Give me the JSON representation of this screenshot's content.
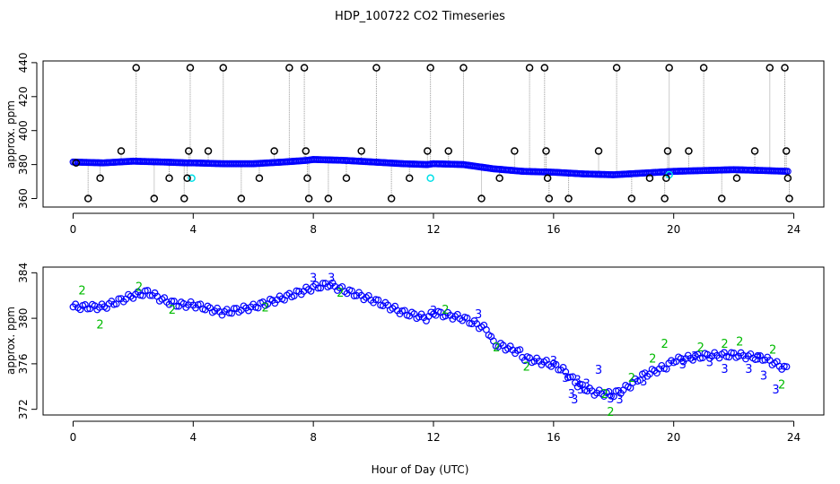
{
  "figure": {
    "title": "HDP_100722  CO2 Timeseries",
    "xlabel": "Hour of Day (UTC)"
  },
  "colors": {
    "raw_black": "#000000",
    "raw_blue": "#0000ff",
    "raw_cyan": "#00e0e8",
    "raw_green": "#00bb00",
    "drop_line": "#999999",
    "axes": "#000000"
  },
  "chart_data": [
    {
      "type": "scatter",
      "title": "",
      "xlabel": "",
      "ylabel": "approx. ppm",
      "xlim": [
        -1,
        25
      ],
      "ylim": [
        355,
        441
      ],
      "x_ticks": [
        "0",
        "4",
        "8",
        "12",
        "16",
        "20",
        "24"
      ],
      "y_ticks": [
        "360",
        "380",
        "400",
        "420",
        "440"
      ],
      "grid": false,
      "series": [
        {
          "marker": "blue-open-circle",
          "knots": [
            [
              0.0,
              381.5
            ],
            [
              1.0,
              381.0
            ],
            [
              2.0,
              382.0
            ],
            [
              3.0,
              381.5
            ],
            [
              3.8,
              381.0
            ],
            [
              4.0,
              381.0
            ],
            [
              5.0,
              380.5
            ],
            [
              6.0,
              380.5
            ],
            [
              7.0,
              381.5
            ],
            [
              7.8,
              382.5
            ],
            [
              8.0,
              383.0
            ],
            [
              9.0,
              382.5
            ],
            [
              10.0,
              381.5
            ],
            [
              11.0,
              380.5
            ],
            [
              11.8,
              380.0
            ],
            [
              12.0,
              380.5
            ],
            [
              13.0,
              380.0
            ],
            [
              14.0,
              377.5
            ],
            [
              15.0,
              376.0
            ],
            [
              16.0,
              375.5
            ],
            [
              17.0,
              374.5
            ],
            [
              18.0,
              374.0
            ],
            [
              19.0,
              375.0
            ],
            [
              20.0,
              376.0
            ],
            [
              21.0,
              376.5
            ],
            [
              22.0,
              377.0
            ],
            [
              23.0,
              376.5
            ],
            [
              23.8,
              376.0
            ]
          ],
          "spacing_hours": 0.05
        },
        {
          "marker": "black-open-circle",
          "points": [
            [
              0.1,
              381
            ],
            [
              0.5,
              360
            ],
            [
              0.9,
              372
            ],
            [
              1.6,
              388
            ],
            [
              2.1,
              437
            ],
            [
              2.7,
              360
            ],
            [
              3.2,
              372
            ],
            [
              3.7,
              360
            ],
            [
              3.8,
              372
            ],
            [
              3.85,
              388
            ],
            [
              3.9,
              437
            ],
            [
              4.5,
              388
            ],
            [
              5.0,
              437
            ],
            [
              5.6,
              360
            ],
            [
              6.2,
              372
            ],
            [
              6.7,
              388
            ],
            [
              7.2,
              437
            ],
            [
              7.7,
              437
            ],
            [
              7.75,
              388
            ],
            [
              7.8,
              372
            ],
            [
              7.85,
              360
            ],
            [
              8.5,
              360
            ],
            [
              9.1,
              372
            ],
            [
              9.6,
              388
            ],
            [
              10.1,
              437
            ],
            [
              10.6,
              360
            ],
            [
              11.2,
              372
            ],
            [
              11.8,
              388
            ],
            [
              11.9,
              437
            ],
            [
              12.5,
              388
            ],
            [
              13.0,
              437
            ],
            [
              13.6,
              360
            ],
            [
              14.2,
              372
            ],
            [
              14.7,
              388
            ],
            [
              15.2,
              437
            ],
            [
              15.7,
              437
            ],
            [
              15.75,
              388
            ],
            [
              15.8,
              372
            ],
            [
              15.85,
              360
            ],
            [
              16.5,
              360
            ],
            [
              17.5,
              388
            ],
            [
              18.1,
              437
            ],
            [
              18.6,
              360
            ],
            [
              19.2,
              372
            ],
            [
              19.7,
              360
            ],
            [
              19.75,
              372
            ],
            [
              19.8,
              388
            ],
            [
              19.85,
              437
            ],
            [
              20.5,
              388
            ],
            [
              21.0,
              437
            ],
            [
              21.6,
              360
            ],
            [
              22.1,
              372
            ],
            [
              22.7,
              388
            ],
            [
              23.2,
              437
            ],
            [
              23.7,
              437
            ],
            [
              23.75,
              388
            ],
            [
              23.8,
              372
            ],
            [
              23.85,
              360
            ]
          ]
        },
        {
          "marker": "cyan-open-circle",
          "points": [
            [
              3.95,
              372
            ],
            [
              11.9,
              372
            ],
            [
              19.85,
              374
            ]
          ]
        }
      ]
    },
    {
      "type": "scatter",
      "title": "",
      "xlabel": "Hour of Day (UTC)",
      "ylabel": "approx. ppm",
      "xlim": [
        -1,
        25
      ],
      "ylim": [
        371.5,
        384.5
      ],
      "x_ticks": [
        "0",
        "4",
        "8",
        "12",
        "16",
        "20",
        "24"
      ],
      "y_ticks": [
        "372",
        "376",
        "380",
        "384"
      ],
      "grid": false,
      "series": [
        {
          "marker": "blue-open-circle",
          "knots": [
            [
              0.0,
              381.0
            ],
            [
              1.0,
              381.0
            ],
            [
              2.0,
              382.0
            ],
            [
              2.5,
              382.3
            ],
            [
              3.0,
              381.6
            ],
            [
              3.5,
              381.2
            ],
            [
              4.0,
              381.2
            ],
            [
              5.0,
              380.5
            ],
            [
              6.0,
              381.0
            ],
            [
              7.0,
              381.8
            ],
            [
              8.0,
              382.7
            ],
            [
              8.5,
              383.0
            ],
            [
              9.0,
              382.5
            ],
            [
              10.0,
              381.6
            ],
            [
              11.0,
              380.5
            ],
            [
              11.8,
              380.0
            ],
            [
              12.0,
              380.5
            ],
            [
              13.0,
              380.0
            ],
            [
              13.8,
              379.0
            ],
            [
              14.0,
              377.8
            ],
            [
              14.9,
              377.0
            ],
            [
              15.0,
              376.5
            ],
            [
              15.9,
              376.0
            ],
            [
              16.3,
              375.5
            ],
            [
              16.8,
              374.2
            ],
            [
              17.3,
              373.5
            ],
            [
              18.0,
              373.3
            ],
            [
              18.5,
              374.0
            ],
            [
              19.0,
              375.0
            ],
            [
              19.8,
              375.8
            ],
            [
              20.0,
              376.3
            ],
            [
              21.0,
              376.7
            ],
            [
              22.0,
              376.8
            ],
            [
              23.0,
              376.5
            ],
            [
              23.8,
              375.5
            ]
          ],
          "spacing_hours": 0.08
        },
        {
          "marker": "green-digit-2",
          "points": [
            [
              0.3,
              382.5
            ],
            [
              0.9,
              379.5
            ],
            [
              2.2,
              382.8
            ],
            [
              3.3,
              380.8
            ],
            [
              6.4,
              381.0
            ],
            [
              8.9,
              382.3
            ],
            [
              12.4,
              380.8
            ],
            [
              14.1,
              377.5
            ],
            [
              15.1,
              375.8
            ],
            [
              17.7,
              373.4
            ],
            [
              17.9,
              371.8
            ],
            [
              18.6,
              374.8
            ],
            [
              19.3,
              376.5
            ],
            [
              19.7,
              377.8
            ],
            [
              20.9,
              377.5
            ],
            [
              21.7,
              377.8
            ],
            [
              22.2,
              378.0
            ],
            [
              23.3,
              377.3
            ],
            [
              23.6,
              374.2
            ]
          ]
        },
        {
          "marker": "blue-digit-3",
          "points": [
            [
              8.0,
              383.6
            ],
            [
              8.6,
              383.6
            ],
            [
              12.0,
              380.7
            ],
            [
              13.5,
              380.4
            ],
            [
              16.0,
              376.3
            ],
            [
              16.4,
              374.8
            ],
            [
              16.6,
              373.4
            ],
            [
              16.7,
              372.9
            ],
            [
              16.8,
              374.6
            ],
            [
              16.9,
              373.8
            ],
            [
              17.1,
              374.3
            ],
            [
              17.5,
              375.5
            ],
            [
              17.9,
              373.0
            ],
            [
              18.2,
              372.9
            ],
            [
              19.0,
              374.5
            ],
            [
              20.3,
              376.0
            ],
            [
              20.7,
              376.7
            ],
            [
              21.2,
              376.2
            ],
            [
              21.7,
              375.6
            ],
            [
              22.5,
              375.6
            ],
            [
              22.8,
              376.5
            ],
            [
              23.0,
              375.0
            ],
            [
              23.4,
              373.8
            ]
          ]
        }
      ]
    }
  ]
}
